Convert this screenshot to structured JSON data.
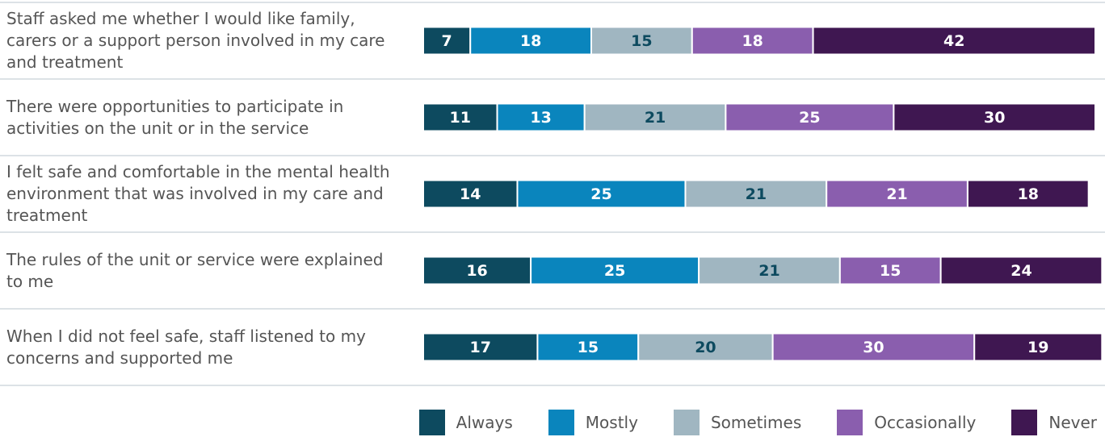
{
  "chart_data": {
    "type": "stacked_bar_horizontal",
    "categories": [
      "Staff asked me whether I would like family, carers or a support person involved in my care and treatment",
      "There were opportunities to participate in activities on the unit or in the service",
      "I felt safe and comfortable in the mental health environment that was involved in my care and treatment",
      "The rules of the unit or service were explained to me",
      "When I did not feel safe, staff listened to my concerns and supported me"
    ],
    "series": [
      {
        "name": "Always",
        "color": "#0d4a5f",
        "label_color": "#ffffff",
        "values": [
          7,
          11,
          14,
          16,
          17
        ]
      },
      {
        "name": "Mostly",
        "color": "#0a85bd",
        "label_color": "#ffffff",
        "values": [
          18,
          13,
          25,
          25,
          15
        ]
      },
      {
        "name": "Sometimes",
        "color": "#a0b6c1",
        "label_color": "#0d4a5f",
        "values": [
          15,
          21,
          21,
          21,
          20
        ]
      },
      {
        "name": "Occasionally",
        "color": "#8a5eae",
        "label_color": "#ffffff",
        "values": [
          18,
          25,
          21,
          15,
          30
        ]
      },
      {
        "name": "Never",
        "color": "#3f1751",
        "label_color": "#ffffff",
        "values": [
          42,
          30,
          18,
          24,
          19
        ]
      }
    ],
    "xlim": [
      0,
      100
    ],
    "legend": "bottom-right"
  }
}
